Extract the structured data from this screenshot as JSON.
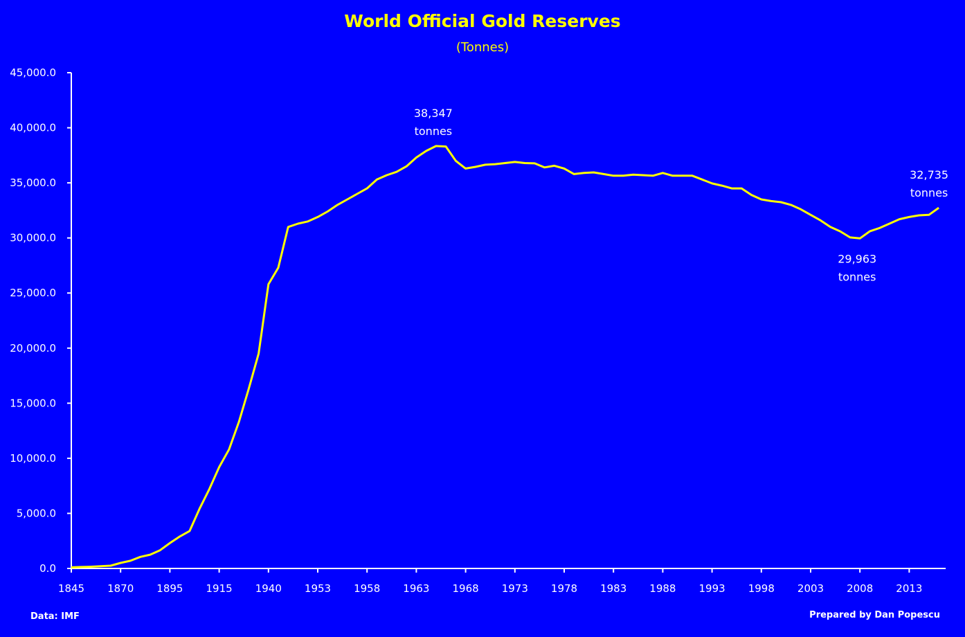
{
  "chart_data": {
    "type": "line",
    "title": "World Official Gold Reserves",
    "subtitle": "(Tonnes)",
    "xlabel": "",
    "ylabel": "",
    "ylim": [
      0,
      45000
    ],
    "yticks": [
      "0.0",
      "5,000.0",
      "10,000.0",
      "15,000.0",
      "20,000.0",
      "25,000.0",
      "30,000.0",
      "35,000.0",
      "40,000.0",
      "45,000.0"
    ],
    "ytick_values": [
      0,
      5000,
      10000,
      15000,
      20000,
      25000,
      30000,
      35000,
      40000,
      45000
    ],
    "x_tick_every": 5,
    "categories": [
      1845,
      1850,
      1855,
      1860,
      1865,
      1870,
      1875,
      1880,
      1885,
      1890,
      1895,
      1899,
      1903,
      1907,
      1911,
      1915,
      1920,
      1925,
      1930,
      1935,
      1940,
      1945,
      1950,
      1951,
      1952,
      1953,
      1954,
      1955,
      1956,
      1957,
      1958,
      1959,
      1960,
      1961,
      1962,
      1963,
      1964,
      1965,
      1966,
      1967,
      1968,
      1969,
      1970,
      1971,
      1972,
      1973,
      1974,
      1975,
      1976,
      1977,
      1978,
      1979,
      1980,
      1981,
      1982,
      1983,
      1984,
      1985,
      1986,
      1987,
      1988,
      1989,
      1990,
      1991,
      1992,
      1993,
      1994,
      1995,
      1996,
      1997,
      1998,
      1999,
      2000,
      2001,
      2002,
      2003,
      2004,
      2005,
      2006,
      2007,
      2008,
      2009,
      2010,
      2011,
      2012,
      2013,
      2014,
      2015,
      2016
    ],
    "values": [
      100,
      130,
      160,
      200,
      250,
      500,
      700,
      1050,
      1250,
      1650,
      2300,
      2900,
      3400,
      5400,
      7200,
      9200,
      10800,
      13300,
      16300,
      19500,
      25800,
      27300,
      31000,
      31300,
      31500,
      31900,
      32400,
      33000,
      33500,
      34000,
      34500,
      35300,
      35700,
      36000,
      36500,
      37300,
      37900,
      38347,
      38300,
      37000,
      36300,
      36450,
      36650,
      36700,
      36800,
      36900,
      36800,
      36770,
      36400,
      36550,
      36300,
      35800,
      35900,
      35950,
      35800,
      35650,
      35650,
      35750,
      35700,
      35650,
      35900,
      35650,
      35650,
      35650,
      35300,
      34950,
      34750,
      34500,
      34500,
      33900,
      33500,
      33350,
      33250,
      33000,
      32600,
      32100,
      31600,
      31000,
      30600,
      30050,
      29963,
      30600,
      30900,
      31300,
      31700,
      31900,
      32050,
      32100,
      32735
    ],
    "series_color": "#FFFF00",
    "background_color": "#0000FF",
    "axis_color": "#FFFFFF",
    "grid": false,
    "legend": "none",
    "annotations": [
      {
        "index": 37,
        "value_text": "38,347",
        "unit_text": "tonnes",
        "position": "above"
      },
      {
        "index": 80,
        "value_text": "29,963",
        "unit_text": "tonnes",
        "position": "below"
      },
      {
        "index": 88,
        "value_text": "32,735",
        "unit_text": "tonnes",
        "position": "above"
      }
    ]
  },
  "footer": {
    "source": "Data: IMF",
    "credit": "Prepared by Dan Popescu"
  }
}
